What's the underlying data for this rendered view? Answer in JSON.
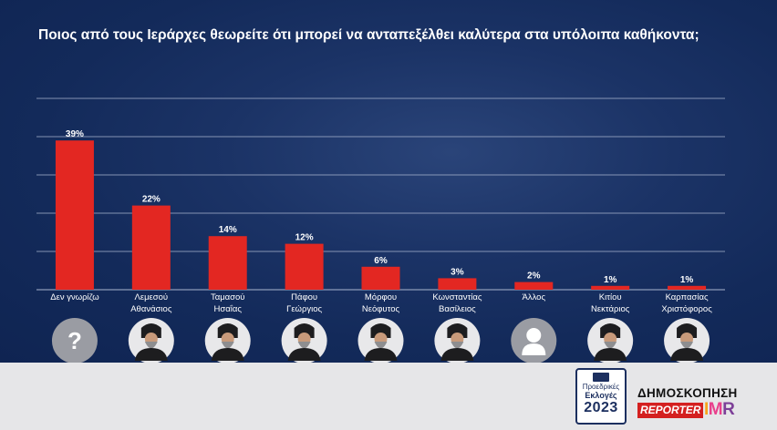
{
  "title": "Ποιος από τους Ιεράρχες θεωρείτε ότι μπορεί να ανταπεξέλθει καλύτερα στα υπόλοιπα καθήκοντα;",
  "colors": {
    "bar": "#e32722",
    "grid": "#aab6cf",
    "background": "#15295a",
    "footer": "#e6e6e8"
  },
  "chart_data": {
    "type": "bar",
    "title": "Ποιος από τους Ιεράρχες θεωρείτε ότι μπορεί να ανταπεξέλθει καλύτερα στα υπόλοιπα καθήκοντα;",
    "categories": [
      [
        "Δεν γνωρίζω"
      ],
      [
        "Λεμεσού",
        "Αθανάσιος"
      ],
      [
        "Ταμασού",
        "Ησαΐας"
      ],
      [
        "Πάφου",
        "Γεώργιος"
      ],
      [
        "Μόρφου",
        "Νεόφυτος"
      ],
      [
        "Κωνσταντίας",
        "Βασίλειος"
      ],
      [
        "Άλλος"
      ],
      [
        "Κιτίου",
        "Νεκτάριος"
      ],
      [
        "Καρπασίας",
        "Χριστόφορος"
      ]
    ],
    "values": [
      39,
      22,
      14,
      12,
      6,
      3,
      2,
      1,
      1
    ],
    "value_labels": [
      "39%",
      "22%",
      "14%",
      "12%",
      "6%",
      "3%",
      "2%",
      "1%",
      "1%"
    ],
    "icons": [
      "question-mark",
      "portrait",
      "portrait",
      "portrait",
      "portrait",
      "portrait",
      "silhouette",
      "portrait",
      "portrait"
    ],
    "ylim": [
      0,
      50
    ],
    "grid": true,
    "xlabel": "",
    "ylabel": ""
  },
  "footer": {
    "badge": {
      "line1": "Προεδρικές",
      "line2": "Εκλογές",
      "line3": "2023"
    },
    "poll_title": "ΔΗΜΟΣΚΟΠΗΣΗ",
    "reporter": "REPORTER",
    "imr": [
      "I",
      "M",
      "R"
    ]
  }
}
